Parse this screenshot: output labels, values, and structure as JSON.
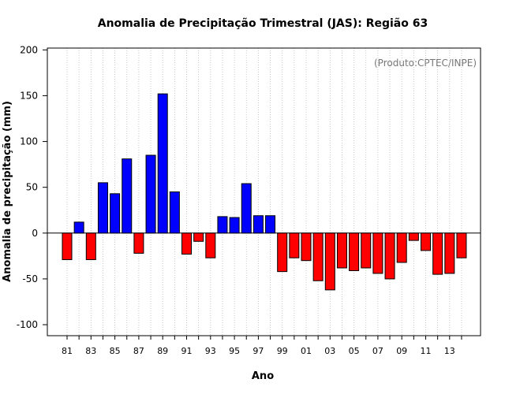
{
  "chart_data": {
    "type": "bar",
    "title": "Anomalia de Precipitação Trimestral (JAS): Região 63",
    "xlabel": "Ano",
    "ylabel": "Anomalia de precipitação (mm)",
    "annotation": "(Produto:CPTEC/INPE)",
    "ylim": [
      -112,
      202
    ],
    "yticks": [
      -100,
      -50,
      0,
      50,
      100,
      150,
      200
    ],
    "grid": "vertical dotted",
    "positive_color": "#0000ff",
    "negative_color": "#ff0000",
    "years": [
      "1981",
      "1982",
      "1983",
      "1984",
      "1985",
      "1986",
      "1987",
      "1988",
      "1989",
      "1990",
      "1991",
      "1992",
      "1993",
      "1994",
      "1995",
      "1996",
      "1997",
      "1998",
      "1999",
      "2000",
      "2001",
      "2002",
      "2003",
      "2004",
      "2005",
      "2006",
      "2007",
      "2008",
      "2009",
      "2010",
      "2011",
      "2012",
      "2013",
      "2014"
    ],
    "values": [
      -29,
      12,
      -29,
      55,
      43,
      81,
      -22,
      85,
      152,
      45,
      -23,
      -9,
      -27,
      18,
      17,
      54,
      19,
      19,
      -42,
      -27,
      -30,
      -52,
      -62,
      -38,
      -41,
      -38,
      -44,
      -50,
      -32,
      -8,
      -19,
      -45,
      -44,
      -27
    ],
    "tick_labels": [
      "81",
      "83",
      "85",
      "87",
      "89",
      "91",
      "93",
      "95",
      "97",
      "99",
      "01",
      "03",
      "05",
      "07",
      "09",
      "11",
      "13"
    ]
  }
}
